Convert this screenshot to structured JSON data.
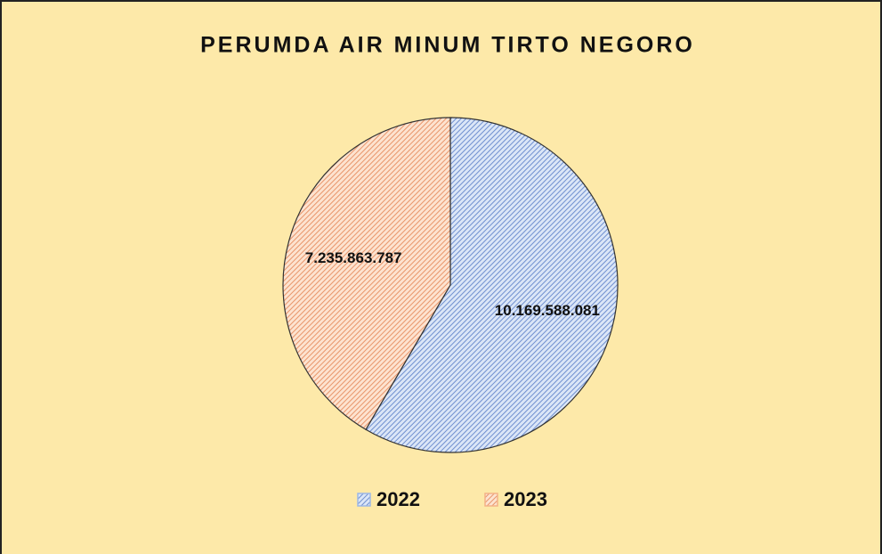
{
  "chart_data": {
    "type": "pie",
    "title": "PERUMDA AIR MINUM TIRTO NEGORO",
    "categories": [
      "2022",
      "2023"
    ],
    "values": [
      10169588081,
      7235863787
    ],
    "value_labels": [
      "10.169.588.081",
      "7.235.863.787"
    ],
    "colors": [
      "#9db8e6",
      "#f4b287"
    ],
    "legend": "bottom"
  }
}
